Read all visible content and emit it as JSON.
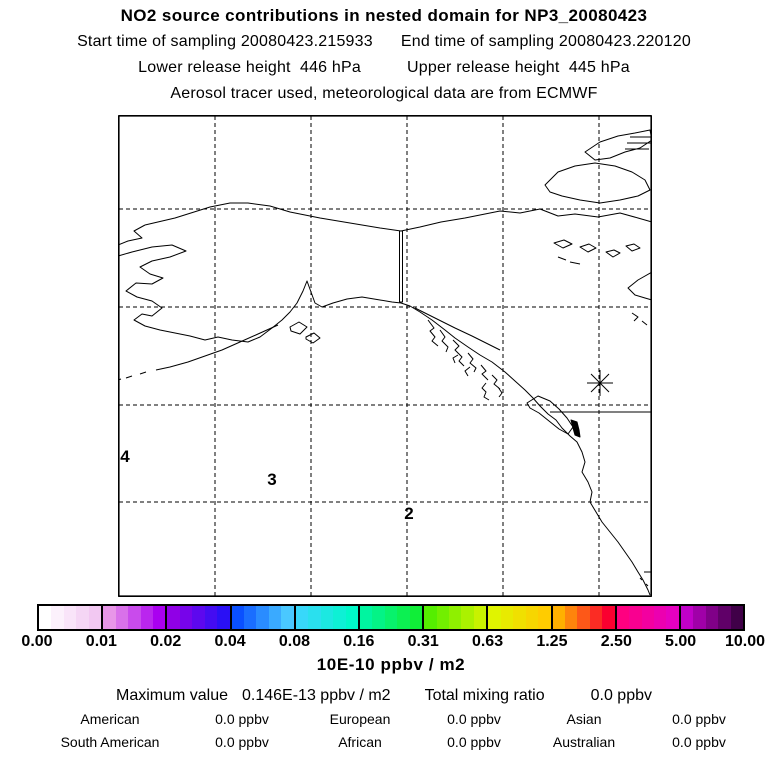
{
  "header": {
    "title": "NO2 source contributions in nested domain for NP3_20080423",
    "start_time_label": "Start time of sampling 20080423.215933",
    "end_time_label": "End time of sampling 20080423.220120",
    "lower_release_label": "Lower release height  446 hPa",
    "upper_release_label": "Upper release height  445 hPa",
    "tracer_note": "Aerosol tracer used, meteorological data are from ECMWF"
  },
  "map": {
    "markers": [
      {
        "label": "4"
      },
      {
        "label": "3"
      },
      {
        "label": "2"
      }
    ],
    "star_symbol": "release-location-asterisk"
  },
  "colorbar": {
    "tick_labels": [
      "0.00",
      "0.01",
      "0.02",
      "0.04",
      "0.08",
      "0.16",
      "0.31",
      "0.63",
      "1.25",
      "2.50",
      "5.00",
      "10.00"
    ],
    "unit_label": "10E-10 ppbv / m2",
    "steps_per_segment": 5,
    "segments": [
      {
        "from": "#ffffff",
        "to": "#f2c8f2"
      },
      {
        "from": "#e896e8",
        "to": "#aa00f0"
      },
      {
        "from": "#9000e6",
        "to": "#2a10f5"
      },
      {
        "from": "#0a50ff",
        "to": "#4ac8ff"
      },
      {
        "from": "#38d8fa",
        "to": "#00f8c8"
      },
      {
        "from": "#00f5a0",
        "to": "#10ee38"
      },
      {
        "from": "#55ee00",
        "to": "#c8f200"
      },
      {
        "from": "#e0f400",
        "to": "#ffcc00"
      },
      {
        "from": "#ffb000",
        "to": "#fa0030"
      },
      {
        "from": "#ff0080",
        "to": "#e600c0"
      },
      {
        "from": "#c000c8",
        "to": "#400048"
      }
    ]
  },
  "stats": {
    "maximum_label": "Maximum value",
    "maximum_value": "0.146E-13 ppbv / m2",
    "total_label": "Total mixing ratio",
    "total_value": "0.0 ppbv",
    "regions": [
      {
        "name": "American",
        "value": "0.0 ppbv"
      },
      {
        "name": "European",
        "value": "0.0 ppbv"
      },
      {
        "name": "Asian",
        "value": "0.0 ppbv"
      },
      {
        "name": "South American",
        "value": "0.0 ppbv"
      },
      {
        "name": "African",
        "value": "0.0 ppbv"
      },
      {
        "name": "Australian",
        "value": "0.0 ppbv"
      }
    ]
  }
}
